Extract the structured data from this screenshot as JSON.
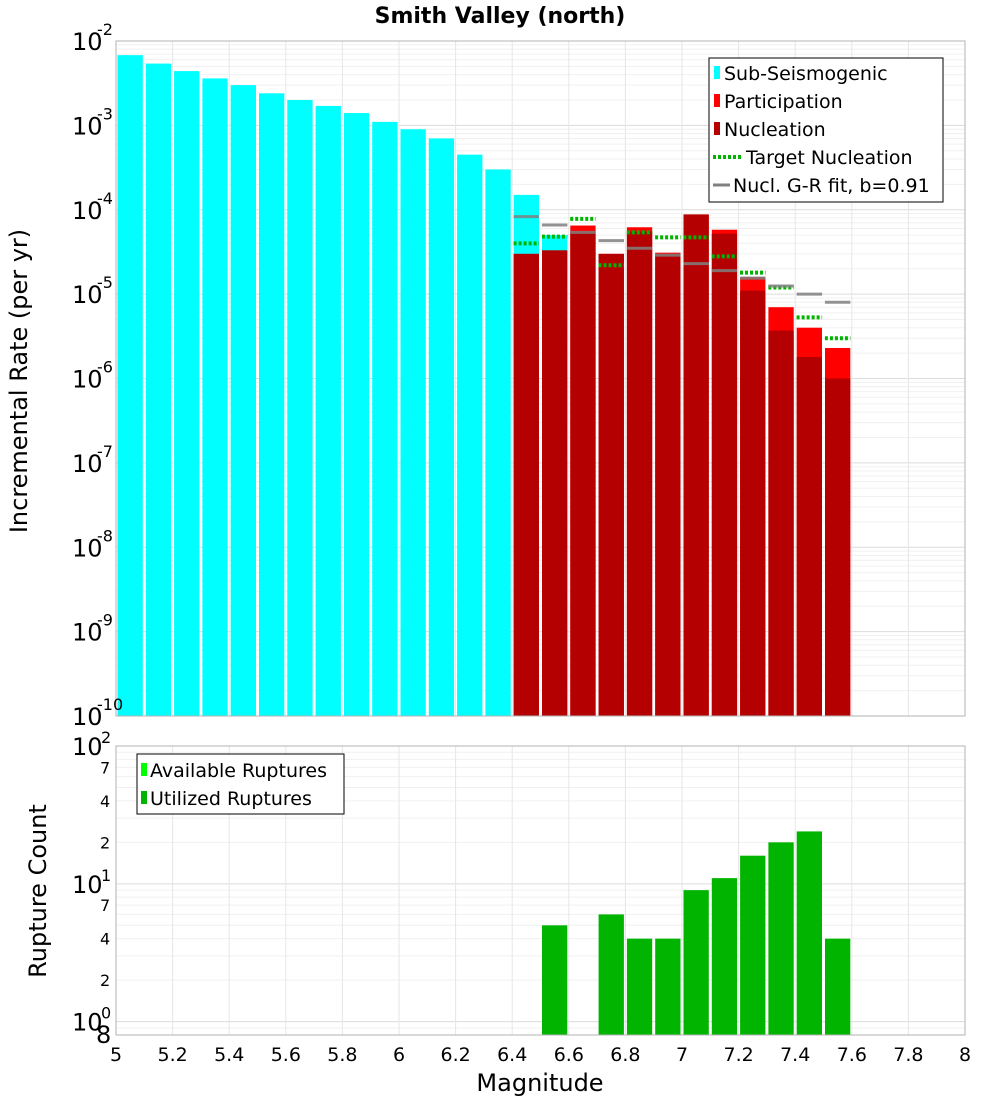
{
  "chart_data": [
    {
      "type": "bar",
      "title": "Smith Valley (north)",
      "xlabel": "",
      "ylabel": "Incremental Rate (per yr)",
      "yscale": "log",
      "xlim": [
        5,
        8
      ],
      "ylim": [
        1e-10,
        0.01
      ],
      "y_ticks": [
        {
          "base": "10",
          "exp": "-10"
        },
        {
          "base": "10",
          "exp": "-9"
        },
        {
          "base": "10",
          "exp": "-8"
        },
        {
          "base": "10",
          "exp": "-7"
        },
        {
          "base": "10",
          "exp": "-6"
        },
        {
          "base": "10",
          "exp": "-5"
        },
        {
          "base": "10",
          "exp": "-4"
        },
        {
          "base": "10",
          "exp": "-3"
        },
        {
          "base": "10",
          "exp": "-2"
        }
      ],
      "bin_width": 0.1,
      "grid": true,
      "legend_position": "top-right",
      "legend": [
        {
          "label": "Sub-Seismogenic",
          "color": "#00ffff",
          "style": "bar"
        },
        {
          "label": "Participation",
          "color": "#ff0000",
          "style": "bar"
        },
        {
          "label": "Nucleation",
          "color": "#b40000",
          "style": "bar"
        },
        {
          "label": "Target Nucleation",
          "color": "#00b400",
          "style": "dotted"
        },
        {
          "label": "Nucl. G-R fit, b=0.91",
          "color": "#808080",
          "style": "line"
        }
      ],
      "series": [
        {
          "name": "Sub-Seismogenic",
          "color": "#00ffff",
          "x": [
            5.05,
            5.15,
            5.25,
            5.35,
            5.45,
            5.55,
            5.65,
            5.75,
            5.85,
            5.95,
            6.05,
            6.15,
            6.25,
            6.35,
            6.45,
            6.55
          ],
          "values": [
            0.0068,
            0.0054,
            0.0044,
            0.0036,
            0.003,
            0.0024,
            0.002,
            0.0017,
            0.0014,
            0.0011,
            0.0009,
            0.0007,
            0.00045,
            0.0003,
            0.00015,
            5e-05
          ]
        },
        {
          "name": "Participation",
          "color": "#ff0000",
          "x": [
            6.45,
            6.55,
            6.65,
            6.75,
            6.85,
            6.95,
            7.05,
            7.15,
            7.25,
            7.35,
            7.45,
            7.55
          ],
          "values": [
            3e-05,
            3.3e-05,
            6.5e-05,
            3e-05,
            6.2e-05,
            3.1e-05,
            8.8e-05,
            5.8e-05,
            1.6e-05,
            7e-06,
            4e-06,
            2.3e-06
          ]
        },
        {
          "name": "Nucleation",
          "color": "#b40000",
          "x": [
            6.45,
            6.55,
            6.65,
            6.75,
            6.85,
            6.95,
            7.05,
            7.15,
            7.25,
            7.35,
            7.45,
            7.55
          ],
          "values": [
            3e-05,
            3.3e-05,
            5.5e-05,
            3e-05,
            5.5e-05,
            3e-05,
            8.8e-05,
            5.2e-05,
            1.1e-05,
            3.7e-06,
            1.8e-06,
            1e-06
          ]
        },
        {
          "name": "Target Nucleation",
          "color": "#00b400",
          "x": [
            6.45,
            6.55,
            6.65,
            6.75,
            6.85,
            6.95,
            7.05,
            7.15,
            7.25,
            7.35,
            7.45,
            7.55
          ],
          "values": [
            4e-05,
            4.8e-05,
            7.8e-05,
            2.2e-05,
            5.4e-05,
            4.7e-05,
            4.7e-05,
            2.8e-05,
            1.8e-05,
            1.2e-05,
            5.3e-06,
            3e-06
          ]
        },
        {
          "name": "Nucl. G-R fit, b=0.91",
          "color": "#808080",
          "x": [
            6.45,
            6.55,
            6.65,
            6.75,
            6.85,
            6.95,
            7.05,
            7.15,
            7.25,
            7.35,
            7.45,
            7.55
          ],
          "values": [
            8.3e-05,
            6.6e-05,
            5.4e-05,
            4.3e-05,
            3.5e-05,
            2.9e-05,
            2.3e-05,
            1.9e-05,
            1.55e-05,
            1.25e-05,
            1e-05,
            8e-06
          ]
        }
      ]
    },
    {
      "type": "bar",
      "title": "",
      "xlabel": "Magnitude",
      "ylabel": "Rupture Count",
      "yscale": "log",
      "xlim": [
        5,
        8
      ],
      "ylim": [
        0.8,
        100
      ],
      "x_ticks": [
        "5",
        "5.2",
        "5.4",
        "5.6",
        "5.8",
        "6",
        "6.2",
        "6.4",
        "6.6",
        "6.8",
        "7",
        "7.2",
        "7.4",
        "7.6",
        "7.8",
        "8"
      ],
      "y_major_ticks": [
        {
          "value": 1,
          "base": "10",
          "exp": "0"
        },
        {
          "value": 10,
          "base": "10",
          "exp": "1"
        },
        {
          "value": 100,
          "base": "10",
          "exp": "2"
        }
      ],
      "y_minor_ticks": [
        {
          "value": 0.8,
          "label": "8"
        },
        {
          "value": 2,
          "label": "2"
        },
        {
          "value": 4,
          "label": "4"
        },
        {
          "value": 7,
          "label": "7"
        },
        {
          "value": 20,
          "label": "2"
        },
        {
          "value": 40,
          "label": "4"
        },
        {
          "value": 70,
          "label": "7"
        }
      ],
      "bin_width": 0.1,
      "grid": true,
      "legend_position": "top-left",
      "legend": [
        {
          "label": "Available Ruptures",
          "color": "#00ff00",
          "style": "bar"
        },
        {
          "label": "Utilized Ruptures",
          "color": "#00b400",
          "style": "bar"
        }
      ],
      "series": [
        {
          "name": "Utilized Ruptures",
          "color": "#00b400",
          "x": [
            6.55,
            6.75,
            6.85,
            6.95,
            7.05,
            7.15,
            7.25,
            7.35,
            7.45,
            7.55
          ],
          "values": [
            5,
            6,
            4,
            4,
            9,
            11,
            16,
            20,
            24,
            4
          ]
        }
      ]
    }
  ]
}
